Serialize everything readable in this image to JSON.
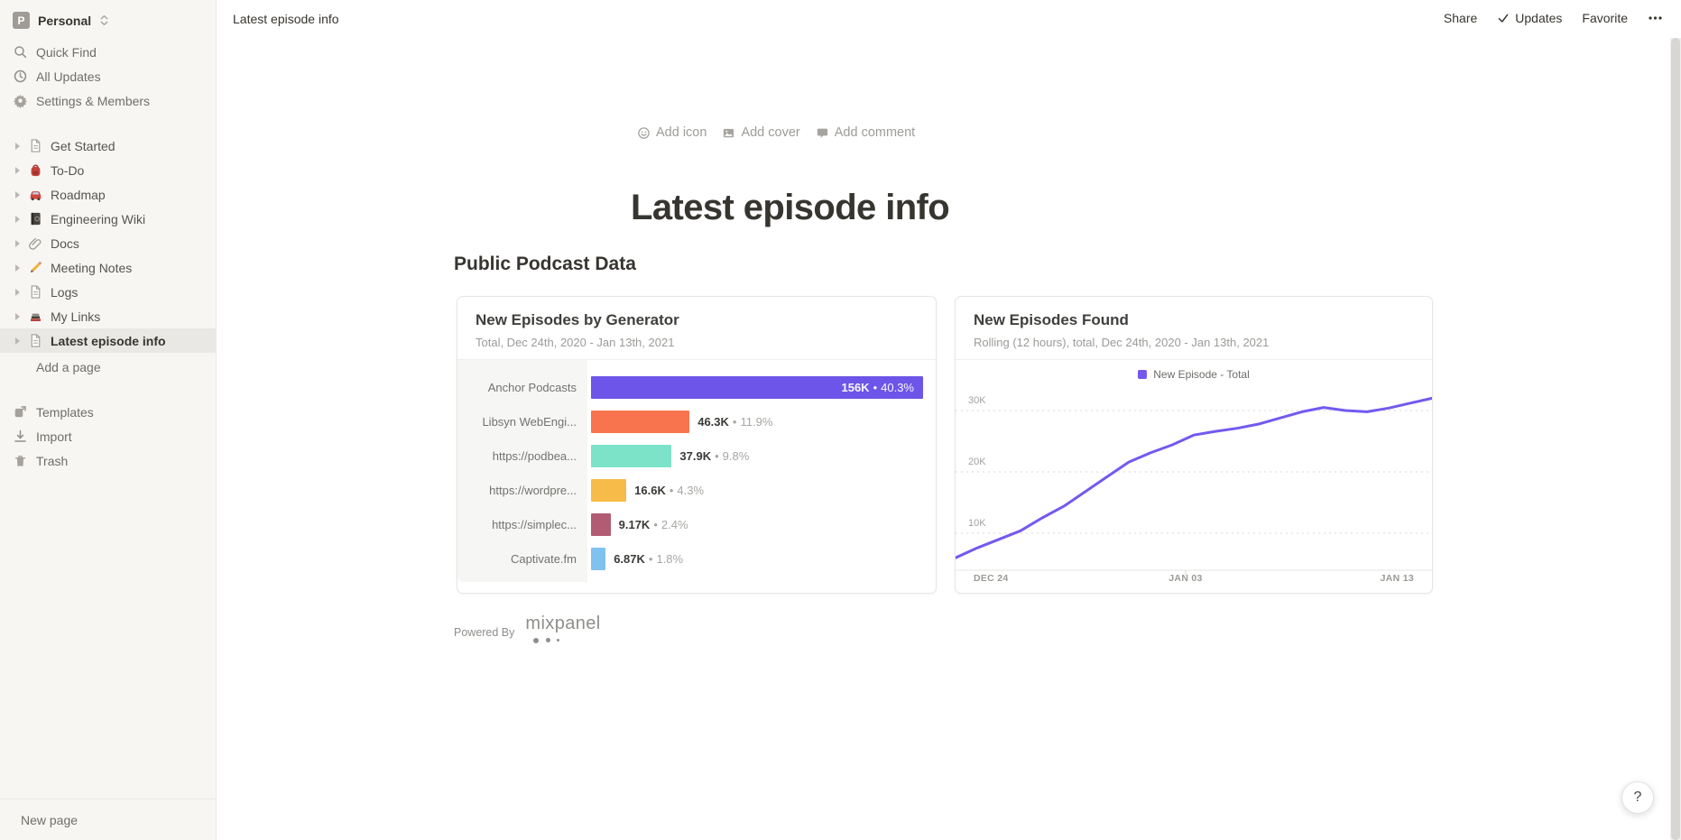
{
  "sidebar": {
    "workspace": {
      "initial": "P",
      "name": "Personal"
    },
    "top_items": [
      {
        "icon": "search-icon",
        "label": "Quick Find"
      },
      {
        "icon": "clock-icon",
        "label": "All Updates"
      },
      {
        "icon": "gear-icon",
        "label": "Settings & Members"
      }
    ],
    "pages": [
      {
        "icon": "page-icon",
        "label": "Get Started"
      },
      {
        "icon": "backpack-icon",
        "label": "To-Do"
      },
      {
        "icon": "car-icon",
        "label": "Roadmap"
      },
      {
        "icon": "notebook-icon",
        "label": "Engineering Wiki"
      },
      {
        "icon": "paperclip-icon",
        "label": "Docs"
      },
      {
        "icon": "pencil-icon",
        "label": "Meeting Notes"
      },
      {
        "icon": "page-icon",
        "label": "Logs"
      },
      {
        "icon": "books-icon",
        "label": "My Links"
      },
      {
        "icon": "page-icon",
        "label": "Latest episode info",
        "selected": true
      }
    ],
    "add_a_page": "Add a page",
    "bottom_items": [
      {
        "icon": "template-icon",
        "label": "Templates"
      },
      {
        "icon": "import-icon",
        "label": "Import"
      },
      {
        "icon": "trash-icon",
        "label": "Trash"
      }
    ],
    "new_page": "New page"
  },
  "topbar": {
    "breadcrumb": "Latest episode info",
    "share": "Share",
    "updates": "Updates",
    "favorite": "Favorite"
  },
  "page": {
    "add_icon": "Add icon",
    "add_cover": "Add cover",
    "add_comment": "Add comment",
    "title": "Latest episode info",
    "section_heading": "Public Podcast Data",
    "powered_by": "Powered By",
    "mixpanel_logo": "mixpanel",
    "help": "?"
  },
  "theme": {
    "sidebar_bg": "#f7f6f3",
    "selected_item_bg": "#e9e8e4",
    "line_accent": "#7459ef"
  },
  "chart_data": [
    {
      "type": "bar",
      "orientation": "horizontal",
      "title": "New Episodes by Generator",
      "subtitle": "Total, Dec 24th, 2020 - Jan 13th, 2021",
      "categories": [
        "Anchor Podcasts",
        "Libsyn WebEngi...",
        "https://podbea...",
        "https://wordpre...",
        "https://simplec...",
        "Captivate.fm"
      ],
      "values": [
        156000,
        46300,
        37900,
        16600,
        9170,
        6870
      ],
      "value_labels": [
        "156K",
        "46.3K",
        "37.9K",
        "16.6K",
        "9.17K",
        "6.87K"
      ],
      "percent_labels": [
        "40.3%",
        "11.9%",
        "9.8%",
        "4.3%",
        "2.4%",
        "1.8%"
      ],
      "colors": [
        "#6c55e8",
        "#f8744f",
        "#7ce3c8",
        "#f6bb49",
        "#b25c74",
        "#7fc2f0"
      ],
      "separator": "•",
      "legend_position": "none",
      "grid": false
    },
    {
      "type": "line",
      "title": "New Episodes Found",
      "subtitle": "Rolling (12 hours), total, Dec 24th, 2020 - Jan 13th, 2021",
      "series": [
        {
          "name": "New Episode - Total",
          "color": "#7459ef",
          "values": [
            6000,
            7600,
            9000,
            10400,
            12500,
            14400,
            16800,
            19200,
            21600,
            23100,
            24400,
            26000,
            26600,
            27100,
            27800,
            28800,
            29800,
            30500,
            30000,
            29800,
            30400,
            31200,
            32000
          ]
        }
      ],
      "x_ticks": [
        "DEC 24",
        "JAN 03",
        "JAN 13"
      ],
      "y_ticks": [
        "10K",
        "20K",
        "30K"
      ],
      "ylim": [
        4000,
        33500
      ],
      "grid": "horizontal-dashed",
      "legend_position": "top"
    }
  ]
}
